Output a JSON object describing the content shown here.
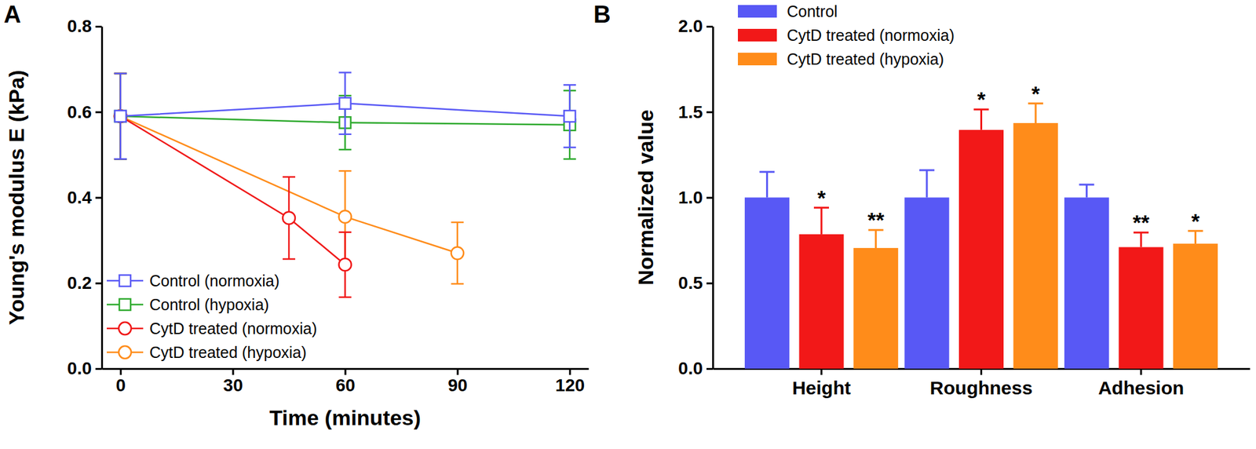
{
  "chart_data": [
    {
      "type": "line",
      "title": "A",
      "x_label": "Time (minutes)",
      "y_label": "Young's modulus E (kPa)",
      "xlim": [
        -5,
        125
      ],
      "xticks": [
        0,
        30,
        60,
        90,
        120
      ],
      "ylim": [
        0,
        0.8
      ],
      "yticks": [
        {
          "value": 0,
          "label": "0.0"
        },
        0.2,
        0.4,
        0.6,
        0.8
      ],
      "legend": "lower left",
      "series": [
        {
          "name": "Control (normoxia)",
          "color": "#5a5af5",
          "marker": "square",
          "x": [
            0,
            60,
            120
          ],
          "values": [
            0.59,
            0.62,
            0.59
          ],
          "errors": [
            0.1,
            0.072,
            0.073
          ]
        },
        {
          "name": "Control (hypoxia)",
          "color": "#2faa2f",
          "marker": "square",
          "x": [
            0,
            60,
            120
          ],
          "values": [
            0.59,
            0.575,
            0.57
          ],
          "errors": [
            0.1,
            0.063,
            0.08
          ]
        },
        {
          "name": "CytD treated (normoxia)",
          "color": "#f01818",
          "marker": "circle",
          "x": [
            0,
            45,
            60
          ],
          "values": [
            0.59,
            0.352,
            0.243
          ],
          "errors": [
            0.1,
            0.096,
            0.076
          ]
        },
        {
          "name": "CytD treated (hypoxia)",
          "color": "#ff8c1a",
          "marker": "circle",
          "x": [
            0,
            60,
            90
          ],
          "values": [
            0.59,
            0.355,
            0.27
          ],
          "errors": [
            0.1,
            0.107,
            0.072
          ]
        }
      ]
    },
    {
      "type": "bar",
      "title": "B",
      "y_label": "Normalized value",
      "categories": [
        "Height",
        "Roughness",
        "Adhesion"
      ],
      "ylim": [
        0,
        2
      ],
      "yticks": [
        {
          "value": 0,
          "label": "0.0"
        },
        0.5,
        {
          "value": 1,
          "label": "1.0"
        },
        1.5,
        {
          "value": 2,
          "label": "2.0"
        }
      ],
      "legend": "upper left",
      "series": [
        {
          "name": "Control",
          "color": "#5858f5",
          "values": [
            1,
            1,
            1
          ],
          "errors": [
            0.15,
            0.16,
            0.075
          ],
          "significance": [
            null,
            null,
            null
          ]
        },
        {
          "name": "CytD treated (normoxia)",
          "color": "#f21818",
          "values": [
            0.785,
            1.395,
            0.71
          ],
          "errors": [
            0.155,
            0.12,
            0.085
          ],
          "significance": [
            "*",
            "*",
            "**"
          ]
        },
        {
          "name": "CytD treated (hypoxia)",
          "color": "#ff8c1a",
          "values": [
            0.705,
            1.435,
            0.73
          ],
          "errors": [
            0.105,
            0.115,
            0.075
          ],
          "significance": [
            "**",
            "*",
            "*"
          ]
        }
      ]
    }
  ]
}
